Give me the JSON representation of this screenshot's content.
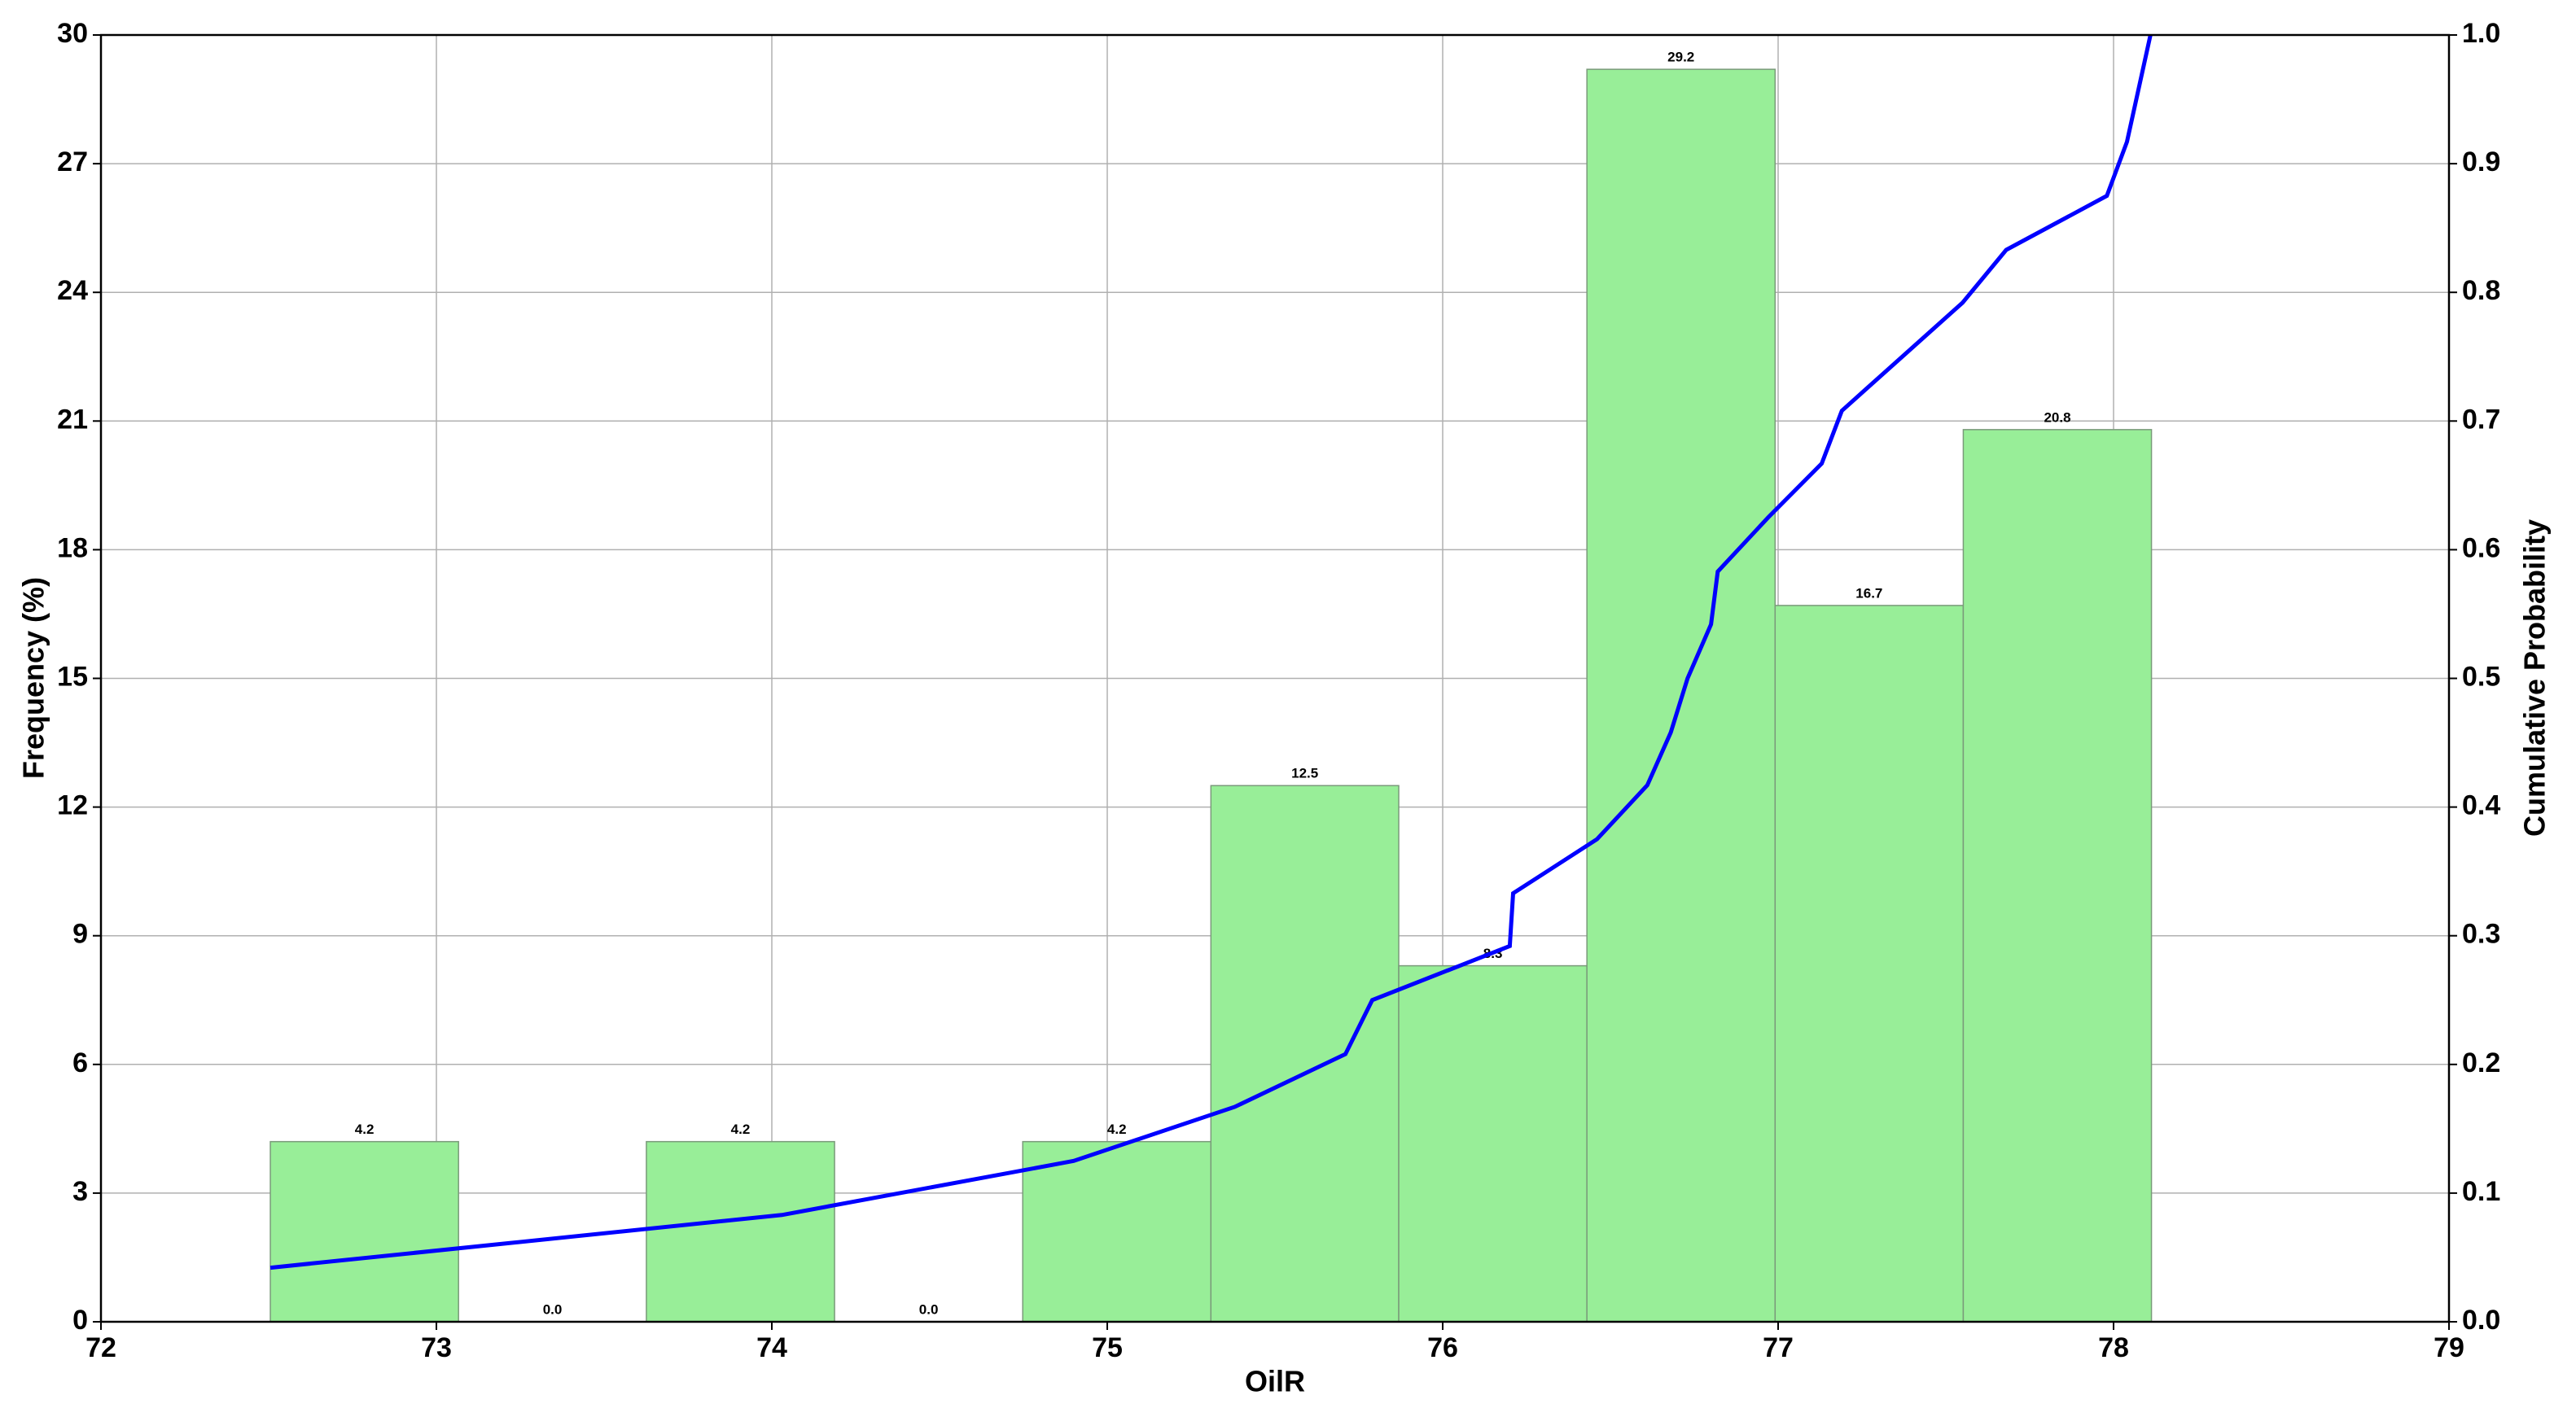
{
  "chart_data": {
    "type": "histogram",
    "xlabel": "OilR",
    "ylabel": "Frequency (%)",
    "y2label": "Cumulative Probability",
    "bins": [
      72.505,
      73.066,
      73.626,
      74.187,
      74.748,
      75.309,
      75.869,
      76.43,
      76.991,
      77.552,
      78.113
    ],
    "values": [
      4.2,
      0.0,
      4.2,
      0.0,
      4.2,
      12.5,
      8.3,
      29.2,
      16.7,
      20.8
    ],
    "value_labels": [
      "4.2",
      "0.0",
      "4.2",
      "0.0",
      "4.2",
      "12.5",
      "8.3",
      "29.2",
      "16.7",
      "20.8"
    ],
    "color": "#98ee98",
    "edgecolor": "#7a9a7a",
    "cumulative": {
      "axis": "y2",
      "color": "#0000ff",
      "x": [
        72.505,
        74.03,
        74.9,
        75.38,
        75.71,
        75.79,
        76.2,
        76.21,
        76.46,
        76.61,
        76.68,
        76.73,
        76.8,
        76.82,
        76.97,
        77.13,
        77.19,
        77.37,
        77.55,
        77.68,
        77.98,
        78.04,
        78.11
      ],
      "values": [
        0.042,
        0.083,
        0.125,
        0.167,
        0.208,
        0.25,
        0.292,
        0.333,
        0.375,
        0.417,
        0.458,
        0.5,
        0.542,
        0.583,
        0.625,
        0.667,
        0.708,
        0.75,
        0.792,
        0.833,
        0.875,
        0.917,
        1.0
      ]
    },
    "xlim": [
      72,
      79
    ],
    "xticks": [
      72,
      73,
      74,
      75,
      76,
      77,
      78,
      79
    ],
    "ylim": [
      0,
      30
    ],
    "yticks": [
      0,
      3,
      6,
      9,
      12,
      15,
      18,
      21,
      24,
      27,
      30
    ],
    "y2lim": [
      0,
      1
    ],
    "y2ticks": [
      {
        "value": 0,
        "label": "0.0"
      },
      0.1,
      0.2,
      0.3,
      0.4,
      0.5,
      0.6,
      0.7,
      0.8,
      0.9,
      {
        "value": 1,
        "label": "1.0"
      }
    ],
    "grid": true
  }
}
